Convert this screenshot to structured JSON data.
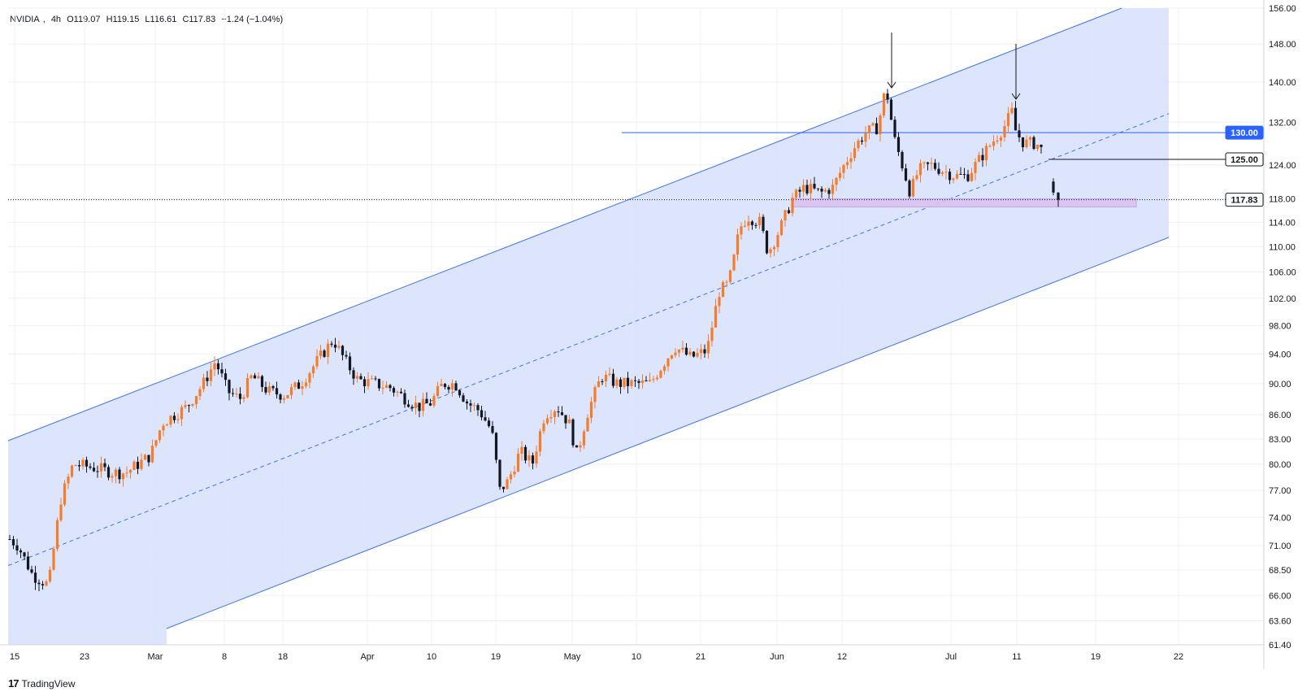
{
  "header": {
    "symbol": "NVIDIA",
    "interval": "4h",
    "open": "O119.07",
    "high": "H119.15",
    "low": "L116.61",
    "close": "C117.83",
    "change": "−1.24 (−1.04%)"
  },
  "brand": {
    "name": "TradingView",
    "mark": "17"
  },
  "colors": {
    "up": "#f57c2b",
    "down": "#131722",
    "channel_fill": "#d6e0fb",
    "channel_line": "#4173e6",
    "zone_fill": "#d9c2f0",
    "badge_blue": "#2962ff",
    "grid": "#eef0f3"
  },
  "chart_data": {
    "type": "candlestick",
    "y_axis_scale": "log",
    "y_ticks": [
      "156.00",
      "148.00",
      "140.00",
      "132.00",
      "124.00",
      "118.00",
      "114.00",
      "110.00",
      "106.00",
      "102.00",
      "98.00",
      "94.00",
      "90.00",
      "86.00",
      "83.00",
      "80.00",
      "77.00",
      "74.00",
      "71.00",
      "68.50",
      "66.00",
      "63.60",
      "61.40"
    ],
    "x_ticks": [
      "15",
      "23",
      "Mar",
      "8",
      "18",
      "Apr",
      "10",
      "19",
      "May",
      "10",
      "21",
      "Jun",
      "12",
      "Jul",
      "11",
      "19",
      "22"
    ],
    "price_badges": [
      {
        "value": "130.00",
        "style": "blue"
      },
      {
        "value": "125.00",
        "style": "black"
      },
      {
        "value": "117.83",
        "style": "black"
      }
    ],
    "last_price": 117.83,
    "annotations": {
      "horizontal_lines": [
        130.0,
        125.0
      ],
      "support_zone": [
        116.6,
        118.0
      ],
      "arrows": [
        "down",
        "down"
      ]
    },
    "anchors": [
      [
        0,
        72.5
      ],
      [
        22,
        71
      ],
      [
        40,
        68
      ],
      [
        60,
        67
      ],
      [
        75,
        76
      ],
      [
        90,
        80
      ],
      [
        120,
        79.5
      ],
      [
        140,
        79
      ],
      [
        155,
        79
      ],
      [
        170,
        80
      ],
      [
        185,
        81
      ],
      [
        200,
        85
      ],
      [
        215,
        86
      ],
      [
        230,
        87
      ],
      [
        250,
        90
      ],
      [
        265,
        93
      ],
      [
        280,
        89
      ],
      [
        295,
        88
      ],
      [
        310,
        91
      ],
      [
        330,
        89
      ],
      [
        350,
        88.5
      ],
      [
        370,
        90
      ],
      [
        390,
        93
      ],
      [
        410,
        96
      ],
      [
        425,
        93
      ],
      [
        440,
        90.5
      ],
      [
        460,
        90
      ],
      [
        480,
        89.5
      ],
      [
        500,
        88
      ],
      [
        515,
        87
      ],
      [
        530,
        87.5
      ],
      [
        545,
        90
      ],
      [
        560,
        90
      ],
      [
        575,
        87.5
      ],
      [
        590,
        86.5
      ],
      [
        605,
        84
      ],
      [
        615,
        77
      ],
      [
        625,
        78
      ],
      [
        640,
        81.5
      ],
      [
        655,
        80
      ],
      [
        670,
        86
      ],
      [
        685,
        87
      ],
      [
        700,
        85
      ],
      [
        710,
        81
      ],
      [
        722,
        86
      ],
      [
        740,
        91
      ],
      [
        760,
        90
      ],
      [
        780,
        90
      ],
      [
        800,
        90
      ],
      [
        815,
        92.5
      ],
      [
        830,
        95
      ],
      [
        850,
        93.5
      ],
      [
        870,
        94.5
      ],
      [
        885,
        103
      ],
      [
        895,
        104
      ],
      [
        900,
        106
      ],
      [
        910,
        113
      ],
      [
        920,
        115
      ],
      [
        935,
        114
      ],
      [
        945,
        109
      ],
      [
        960,
        113
      ],
      [
        975,
        118
      ],
      [
        990,
        120
      ],
      [
        1010,
        119
      ],
      [
        1025,
        120
      ],
      [
        1035,
        123
      ],
      [
        1050,
        127
      ],
      [
        1065,
        130
      ],
      [
        1080,
        131
      ],
      [
        1090,
        139
      ],
      [
        1100,
        129
      ],
      [
        1110,
        124
      ],
      [
        1120,
        119
      ],
      [
        1130,
        123
      ],
      [
        1145,
        124
      ],
      [
        1160,
        123
      ],
      [
        1175,
        122
      ],
      [
        1190,
        122
      ],
      [
        1205,
        125
      ],
      [
        1220,
        128
      ],
      [
        1235,
        131
      ],
      [
        1245,
        134
      ],
      [
        1250,
        130
      ],
      [
        1260,
        128
      ],
      [
        1275,
        128
      ],
      [
        1285,
        126
      ]
    ],
    "last_candles": [
      {
        "open": 121.0,
        "high": 121.6,
        "low": 118.6,
        "close": 119.07
      },
      {
        "open": 119.07,
        "high": 119.15,
        "low": 116.61,
        "close": 117.83
      }
    ]
  }
}
